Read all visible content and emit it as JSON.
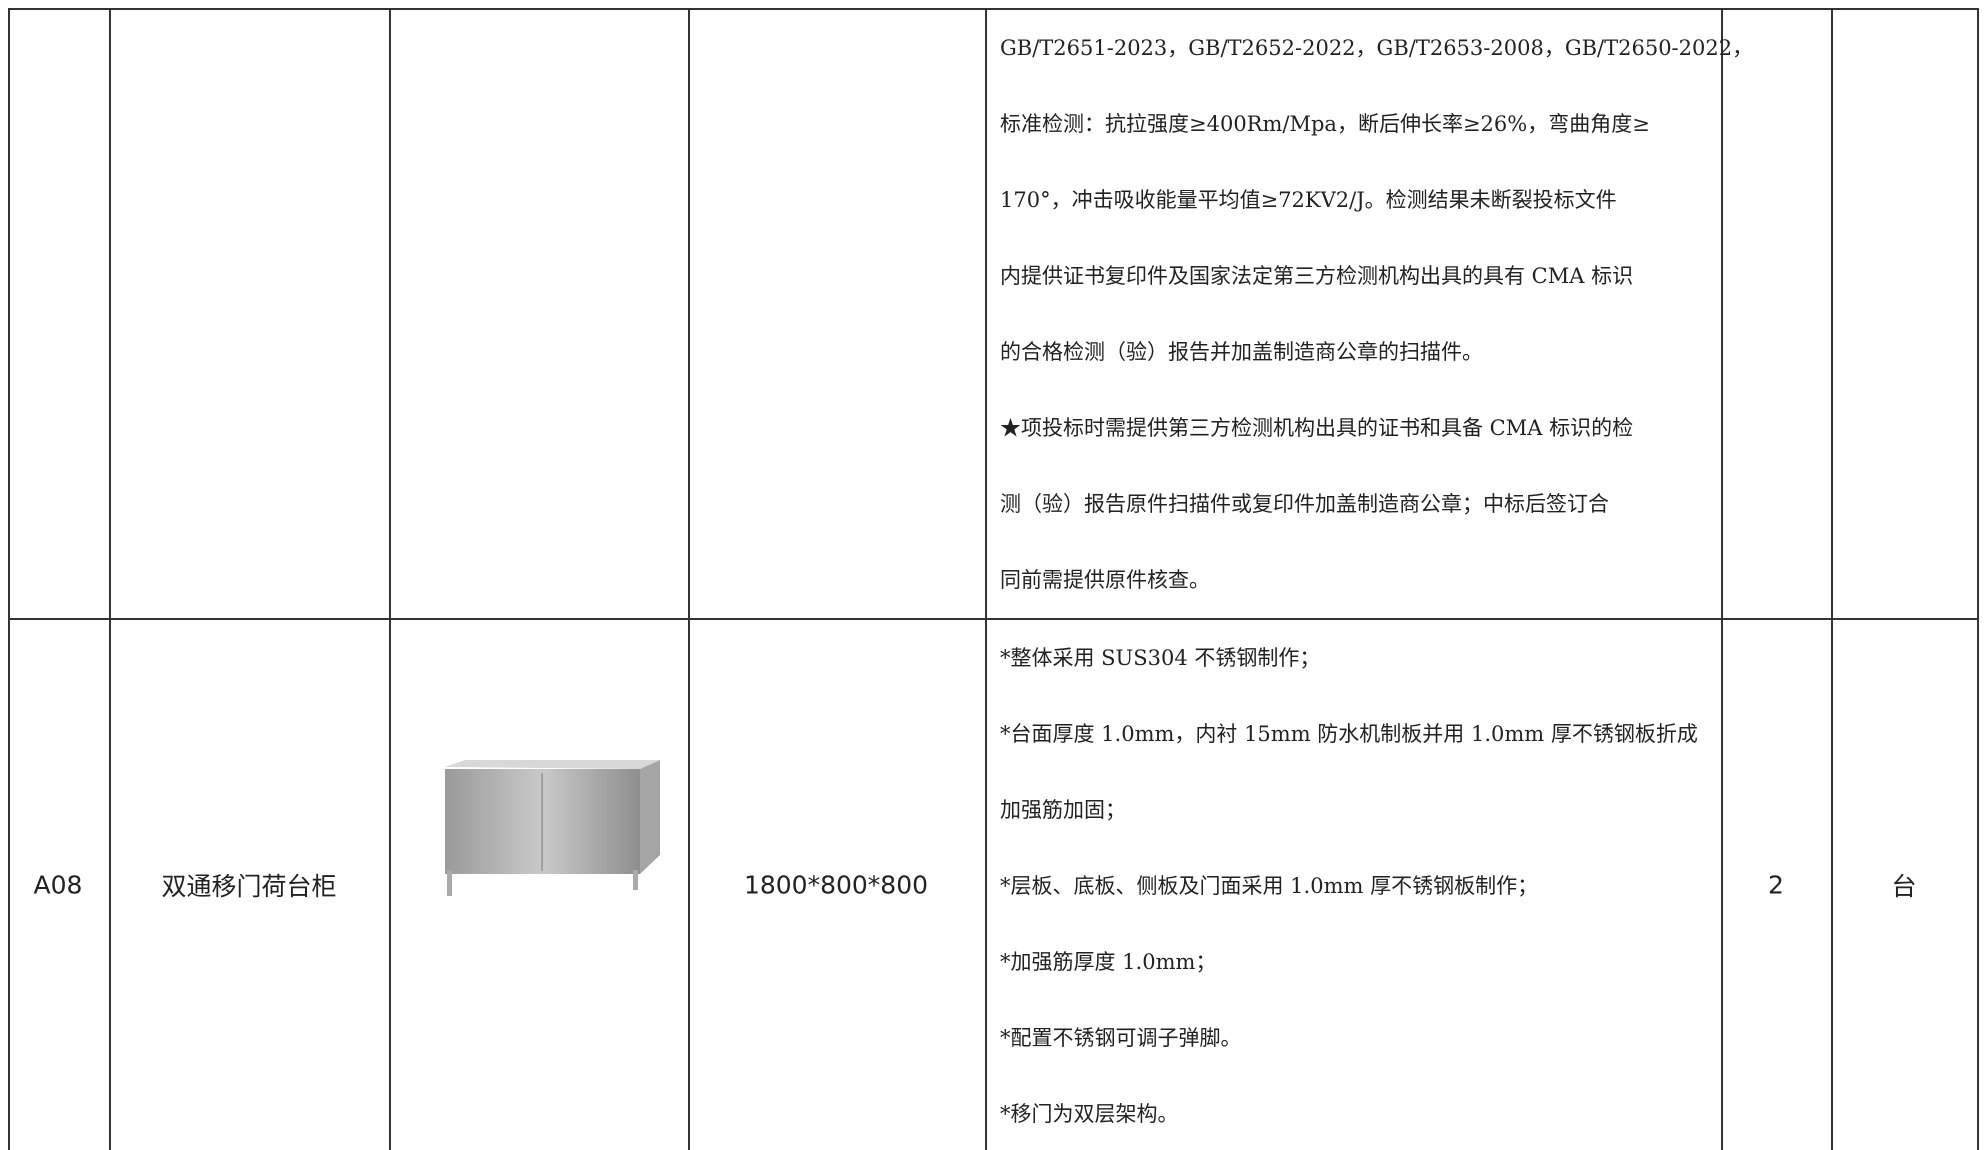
{
  "table": {
    "rows": [
      {
        "spec": [
          "GB/T2651-2023，GB/T2652-2022，GB/T2653-2008，GB/T2650-2022，",
          "标准检测：抗拉强度≥400Rm/Mpa，断后伸长率≥26%，弯曲角度≥",
          "170°，冲击吸收能量平均值≥72KV2/J。检测结果未断裂投标文件",
          "内提供证书复印件及国家法定第三方检测机构出具的具有 CMA 标识",
          "的合格检测（验）报告并加盖制造商公章的扫描件。",
          "★项投标时需提供第三方检测机构出具的证书和具备 CMA 标识的检",
          "测（验）报告原件扫描件或复印件加盖制造商公章；中标后签订合",
          "同前需提供原件核查。"
        ]
      },
      {
        "code": "A08",
        "name": "双通移门荷台柜",
        "size": "1800*800*800",
        "spec": [
          "*整体采用 SUS304 不锈钢制作；",
          "*台面厚度 1.0mm，内衬 15mm 防水机制板并用 1.0mm 厚不锈钢板折成",
          "加强筋加固；",
          "*层板、底板、侧板及门面采用 1.0mm 厚不锈钢板制作；",
          "*加强筋厚度 1.0mm；",
          "*配置不锈钢可调子弹脚。",
          "*移门为双层架构。"
        ],
        "qty": "2",
        "unit": "台"
      }
    ]
  }
}
